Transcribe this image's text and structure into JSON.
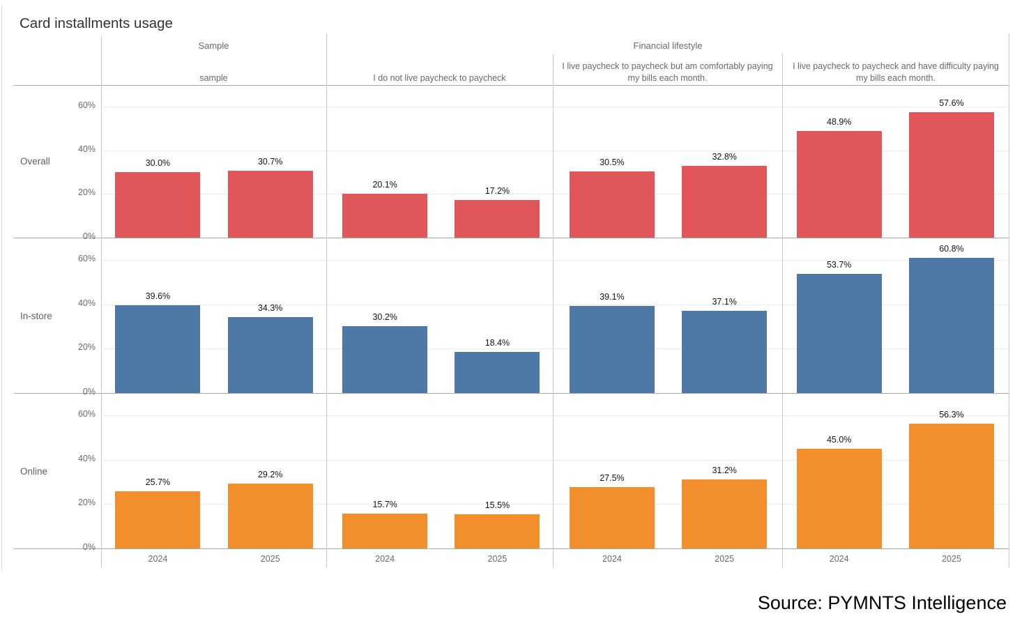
{
  "title": "Card installments usage",
  "source": "Source: PYMNTS Intelligence",
  "chart_data": {
    "type": "bar",
    "title": "Card installments usage",
    "layout": "small-multiples grid: 3 metric rows x 4 segment columns, 2 bars per panel",
    "column_groups": [
      {
        "label": "Sample",
        "start": 0,
        "end": 0
      },
      {
        "label": "Financial lifestyle",
        "start": 1,
        "end": 3
      }
    ],
    "columns": [
      "sample",
      "I do not live paycheck to paycheck",
      "I live paycheck to paycheck but am comfortably paying my bills each month.",
      "I live paycheck to paycheck and have difficulty paying my bills each month."
    ],
    "rows": [
      {
        "label": "Overall",
        "color": "#E15759",
        "values": [
          [
            30.0,
            30.7
          ],
          [
            20.1,
            17.2
          ],
          [
            30.5,
            32.8
          ],
          [
            48.9,
            57.6
          ]
        ]
      },
      {
        "label": "In-store",
        "color": "#4E79A7",
        "values": [
          [
            39.6,
            34.3
          ],
          [
            30.2,
            18.4
          ],
          [
            39.1,
            37.1
          ],
          [
            53.7,
            60.8
          ]
        ]
      },
      {
        "label": "Online",
        "color": "#F28E2B",
        "values": [
          [
            25.7,
            29.2
          ],
          [
            15.7,
            15.5
          ],
          [
            27.5,
            31.2
          ],
          [
            45.0,
            56.3
          ]
        ]
      }
    ],
    "x": [
      "2024",
      "2025"
    ],
    "yticks": [
      "0%",
      "20%",
      "40%",
      "60%"
    ],
    "ylim": [
      0,
      70
    ],
    "grid": true,
    "legend": "none",
    "value_label_format": "0.0%",
    "unit": "percent"
  }
}
